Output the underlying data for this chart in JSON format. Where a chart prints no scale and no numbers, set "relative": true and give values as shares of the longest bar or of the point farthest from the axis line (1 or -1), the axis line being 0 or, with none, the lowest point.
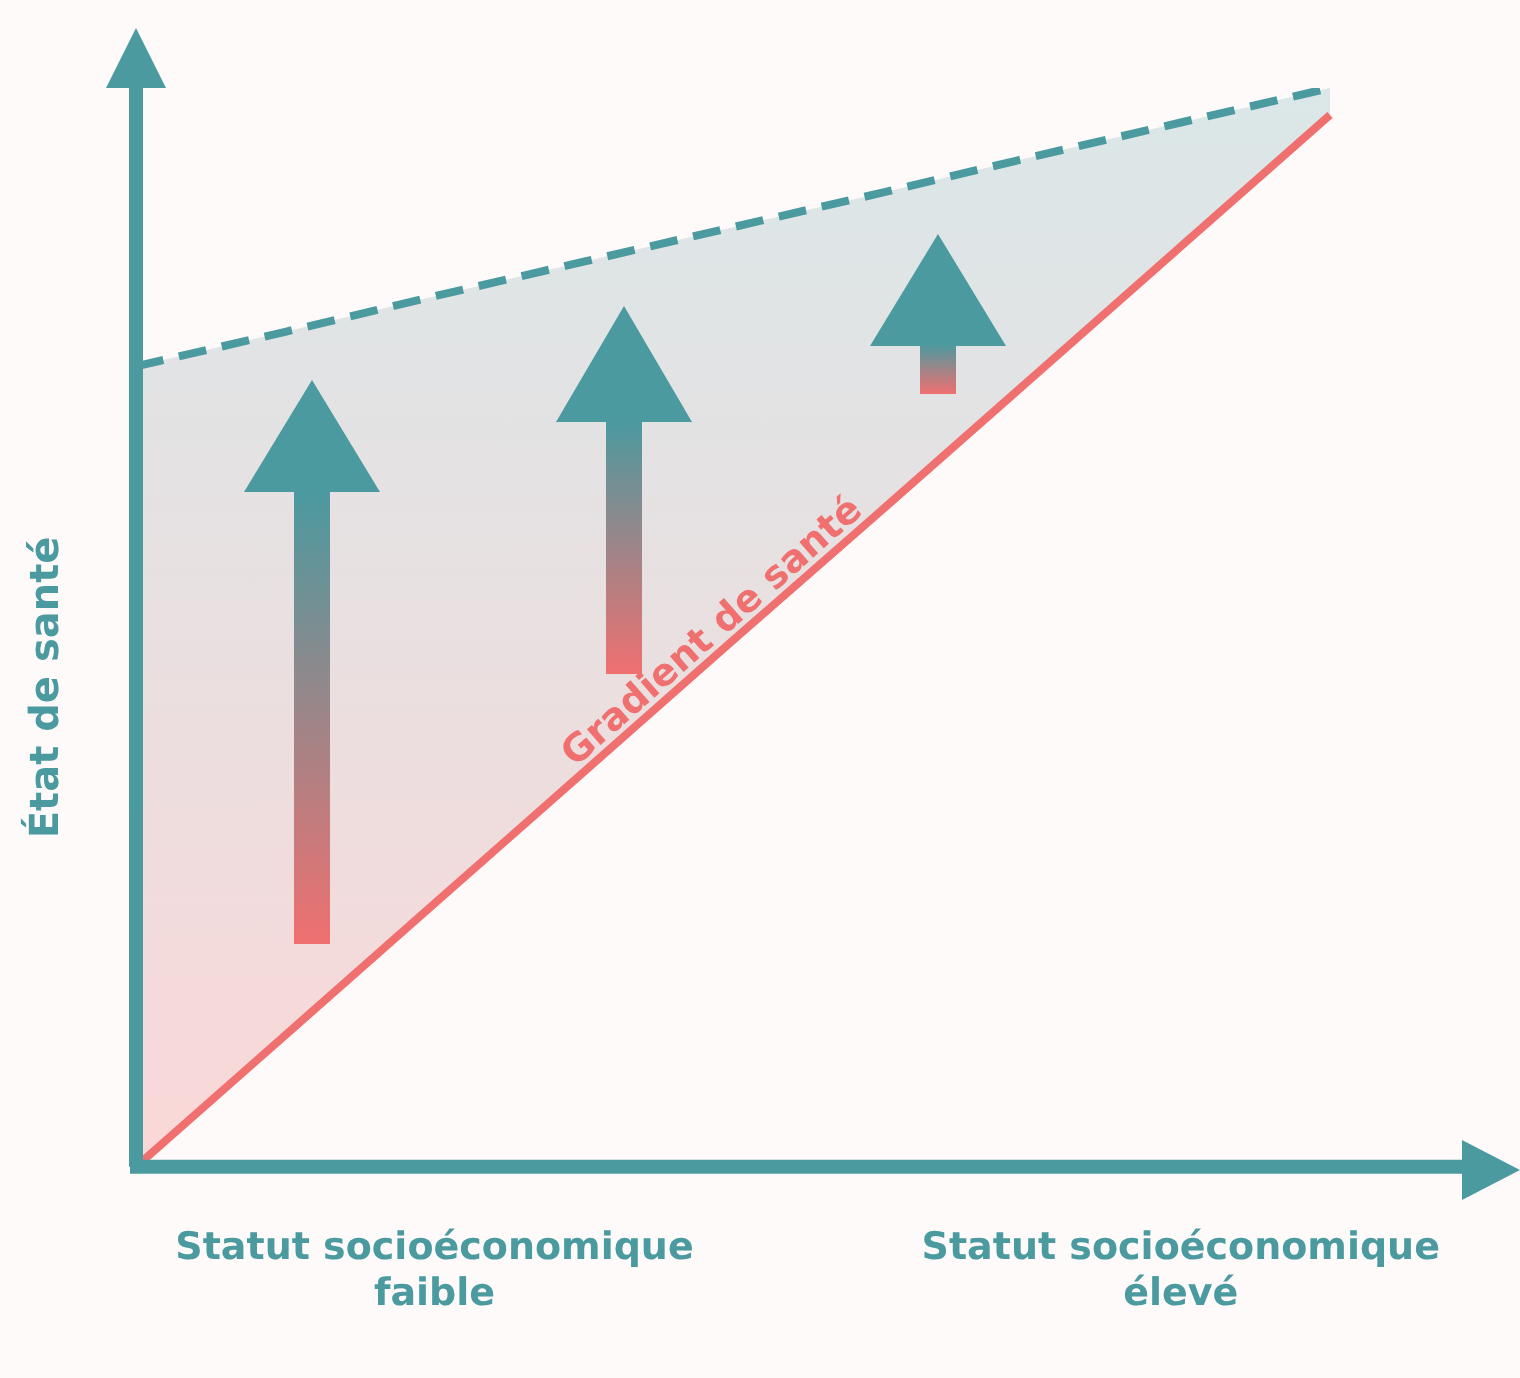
{
  "chart_data": {
    "type": "line",
    "relative": true,
    "ylabel": "État de santé",
    "categories": [
      null,
      null,
      "Statut socioéconomique faible",
      null,
      null,
      null,
      null,
      "Statut socioéconomique élevé",
      null
    ],
    "series": [
      {
        "type": "line",
        "color": "#f07070",
        "line_style": "solid",
        "values": [
          0,
          0.122,
          0.244,
          0.366,
          0.488,
          0.609,
          0.731,
          0.853,
          0.975
        ]
      },
      {
        "type": "area",
        "color": "#4a9aa0",
        "line_style": "dashed",
        "values": [
          0.742,
          0.774,
          0.807,
          0.839,
          0.871,
          0.903,
          0.936,
          0.968,
          1
        ]
      }
    ],
    "annotations": [
      "Gradient de santé"
    ],
    "legend": false,
    "grid": false,
    "marker": "none"
  }
}
